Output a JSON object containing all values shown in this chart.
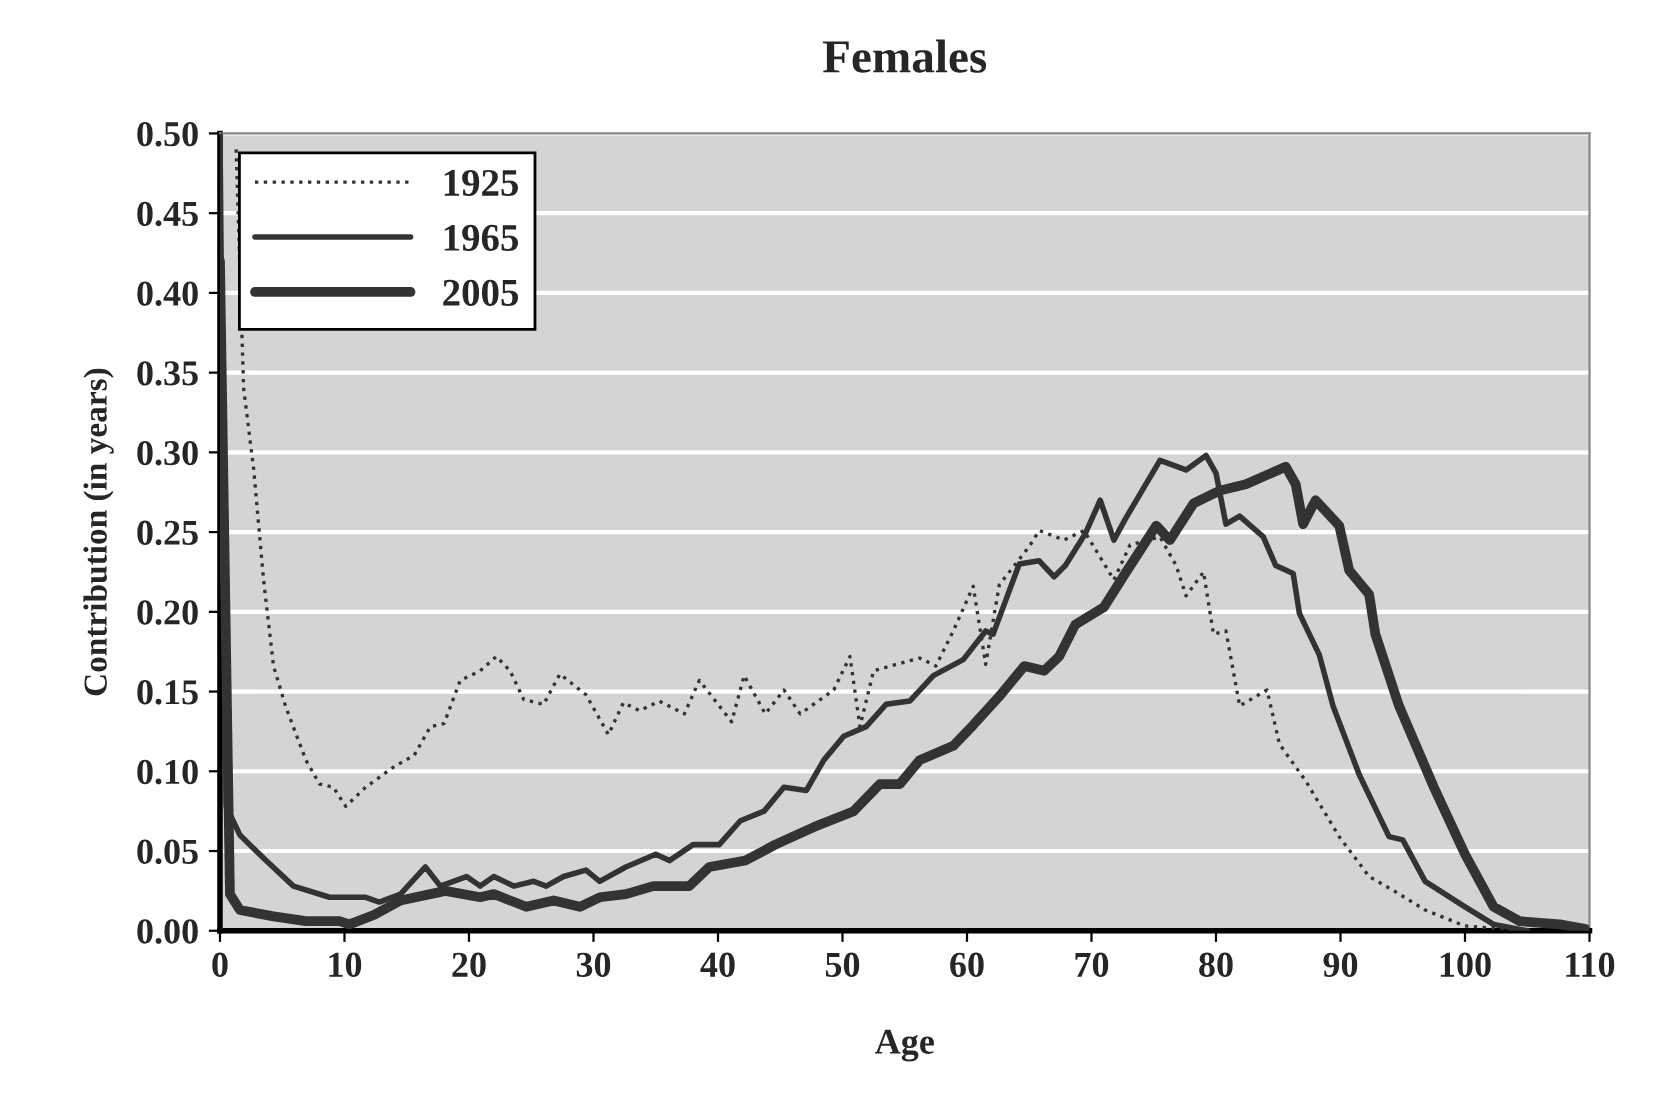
{
  "chart_data": {
    "type": "line",
    "title": "Females",
    "xlabel": "Age",
    "ylabel": "Contribution (in years)",
    "xlim": [
      0,
      110
    ],
    "xticks": [
      0,
      10,
      20,
      30,
      40,
      50,
      60,
      70,
      80,
      90,
      100,
      110
    ],
    "ylim": [
      0,
      0.5
    ],
    "yticks": [
      {
        "value": 0,
        "label": "0.00"
      },
      {
        "value": 0.05,
        "label": "0.05"
      },
      {
        "value": 0.1,
        "label": "0.10"
      },
      {
        "value": 0.15,
        "label": "0.15"
      },
      {
        "value": 0.2,
        "label": "0.20"
      },
      {
        "value": 0.25,
        "label": "0.25"
      },
      {
        "value": 0.3,
        "label": "0.30"
      },
      {
        "value": 0.35,
        "label": "0.35"
      },
      {
        "value": 0.4,
        "label": "0.40"
      },
      {
        "value": 0.45,
        "label": "0.45"
      },
      {
        "value": 0.5,
        "label": "0.50"
      }
    ],
    "grid": "y",
    "legend": "top left",
    "marker": "none",
    "series": [
      {
        "name": "1925",
        "color": "#333333",
        "line_style": "dotted",
        "x": [
          1.3,
          1.9,
          2.7,
          3.5,
          4.3,
          5.3,
          6.9,
          8,
          9.1,
          10.1,
          11.7,
          14,
          15.6,
          16.9,
          18,
          19.3,
          20.9,
          22.2,
          23.3,
          24.4,
          26,
          27.3,
          29.4,
          31.2,
          32.4,
          33.7,
          35.3,
          37.3,
          38.5,
          41.1,
          42.1,
          43.8,
          45.3,
          46.6,
          49.3,
          50.6,
          51.4,
          52.5,
          54.3,
          56.2,
          57.5,
          58.9,
          60.5,
          61.5,
          62.6,
          65,
          65.8,
          67.8,
          69.4,
          71.8,
          73.1,
          75.5,
          76.8,
          77.6,
          79,
          79.8,
          80.8,
          81.9,
          84.1,
          85.1,
          87.2,
          89.9,
          92.3,
          94.3,
          96.8,
          100,
          105
        ],
        "values": [
          0.49,
          0.34,
          0.29,
          0.22,
          0.166,
          0.14,
          0.107,
          0.092,
          0.09,
          0.078,
          0.09,
          0.103,
          0.11,
          0.128,
          0.13,
          0.157,
          0.163,
          0.172,
          0.163,
          0.145,
          0.142,
          0.161,
          0.148,
          0.123,
          0.143,
          0.138,
          0.144,
          0.136,
          0.157,
          0.131,
          0.16,
          0.136,
          0.151,
          0.136,
          0.151,
          0.172,
          0.128,
          0.163,
          0.167,
          0.171,
          0.166,
          0.188,
          0.216,
          0.167,
          0.217,
          0.241,
          0.251,
          0.245,
          0.251,
          0.22,
          0.242,
          0.247,
          0.229,
          0.21,
          0.225,
          0.186,
          0.188,
          0.141,
          0.151,
          0.117,
          0.094,
          0.059,
          0.034,
          0.025,
          0.013,
          0.003,
          0
        ]
      },
      {
        "name": "1965",
        "color": "#333333",
        "line_style": "solid",
        "x": [
          0,
          0.5,
          1.6,
          3.7,
          5.9,
          8.8,
          11.7,
          12.8,
          14.5,
          16.5,
          17.7,
          19.8,
          20.9,
          22,
          23.6,
          25.2,
          26.2,
          27.6,
          29.4,
          30.5,
          32.6,
          35,
          36.1,
          38,
          40.1,
          41.8,
          43.7,
          45.3,
          47.1,
          48.5,
          50.1,
          51.9,
          53.5,
          55.4,
          57.3,
          59.7,
          61.5,
          62.1,
          64.2,
          65.8,
          67,
          67.9,
          69.5,
          70.7,
          71.8,
          72.7,
          75.5,
          77.6,
          79.2,
          80,
          80.8,
          81.9,
          83.8,
          84.8,
          86.2,
          86.7,
          88.3,
          89.4,
          91.5,
          93.9,
          95,
          96.8,
          100,
          102.3,
          105
        ],
        "values": [
          0.5,
          0.078,
          0.06,
          0.044,
          0.028,
          0.021,
          0.021,
          0.018,
          0.023,
          0.04,
          0.028,
          0.034,
          0.028,
          0.034,
          0.028,
          0.031,
          0.028,
          0.034,
          0.038,
          0.031,
          0.04,
          0.048,
          0.044,
          0.054,
          0.054,
          0.069,
          0.075,
          0.09,
          0.088,
          0.107,
          0.122,
          0.128,
          0.142,
          0.144,
          0.16,
          0.17,
          0.188,
          0.186,
          0.23,
          0.232,
          0.222,
          0.229,
          0.249,
          0.27,
          0.245,
          0.258,
          0.295,
          0.289,
          0.298,
          0.287,
          0.255,
          0.26,
          0.247,
          0.229,
          0.224,
          0.199,
          0.173,
          0.141,
          0.098,
          0.059,
          0.057,
          0.031,
          0.015,
          0.004,
          0
        ]
      },
      {
        "name": "2005",
        "color": "#333333",
        "line_style": "solid",
        "x": [
          0,
          0.8,
          1.6,
          4.3,
          6.9,
          9.6,
          10.4,
          12.4,
          14.5,
          18.1,
          20.9,
          22,
          24.6,
          26.8,
          28.9,
          30.5,
          32.6,
          34.8,
          37.7,
          39.3,
          42.2,
          44.6,
          47.7,
          50.9,
          53,
          54.6,
          56.2,
          58.9,
          60.5,
          62.6,
          64.6,
          66.2,
          67.4,
          68.7,
          71,
          72.7,
          75.2,
          76.3,
          78.2,
          80.3,
          82.4,
          85.6,
          86.4,
          87,
          88,
          89.9,
          90.7,
          92.3,
          92.8,
          94.7,
          97.5,
          100,
          102.3,
          104.4,
          107.6,
          109.7
        ],
        "values": [
          0.42,
          0.023,
          0.013,
          0.009,
          0.006,
          0.006,
          0.004,
          0.01,
          0.019,
          0.025,
          0.021,
          0.023,
          0.015,
          0.019,
          0.015,
          0.021,
          0.023,
          0.028,
          0.028,
          0.04,
          0.044,
          0.054,
          0.065,
          0.075,
          0.092,
          0.092,
          0.107,
          0.116,
          0.129,
          0.147,
          0.166,
          0.163,
          0.172,
          0.192,
          0.203,
          0.224,
          0.254,
          0.245,
          0.268,
          0.276,
          0.28,
          0.291,
          0.28,
          0.255,
          0.27,
          0.254,
          0.226,
          0.211,
          0.186,
          0.141,
          0.09,
          0.048,
          0.015,
          0.006,
          0.004,
          0.001
        ]
      }
    ]
  }
}
